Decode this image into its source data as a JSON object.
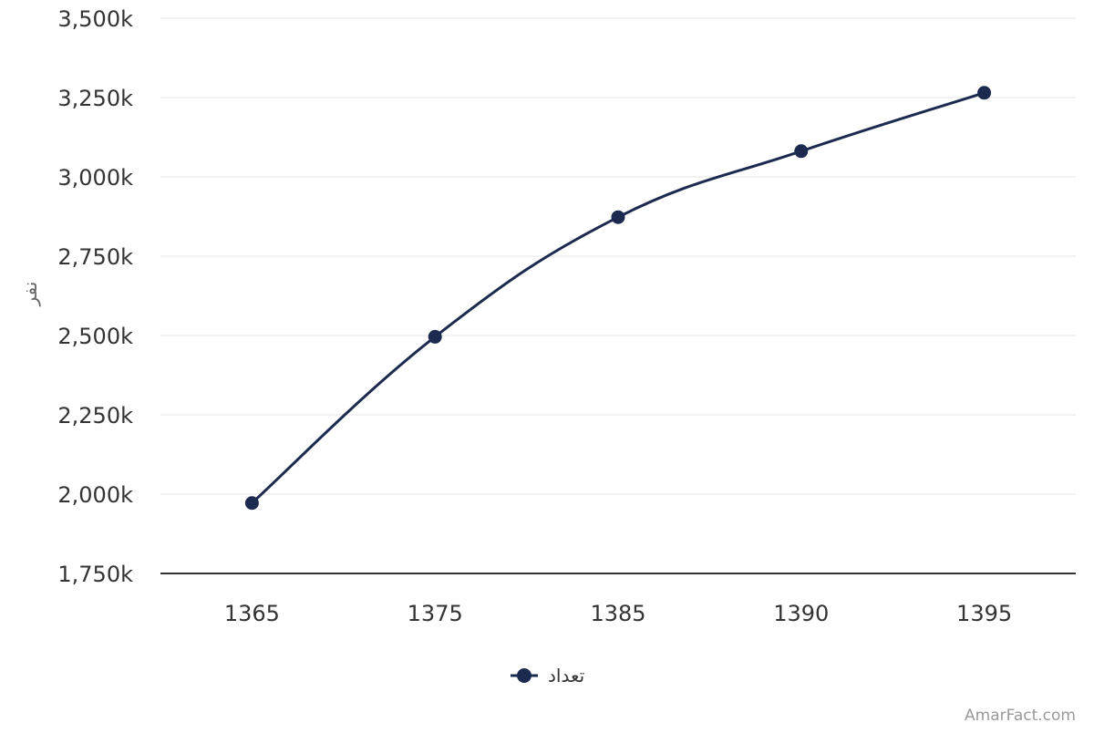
{
  "chart_data": {
    "type": "line",
    "title": "",
    "xlabel": "",
    "ylabel": "نفر",
    "categories": [
      "1365",
      "1375",
      "1385",
      "1390",
      "1395"
    ],
    "series": [
      {
        "name": "تعداد",
        "values": [
          1972,
          2496,
          2873,
          3081,
          3265
        ],
        "color": "#1b2a4e"
      }
    ],
    "ylim": [
      1750,
      3500
    ],
    "yticks": [
      1750,
      2000,
      2250,
      2500,
      2750,
      3000,
      3250,
      3500
    ],
    "ytick_labels": [
      "1,750k",
      "2,000k",
      "2,250k",
      "2,500k",
      "2,750k",
      "3,000k",
      "3,250k",
      "3,500k"
    ],
    "grid": true,
    "legend_position": "bottom-center",
    "colors": {
      "line": "#1b2a4e",
      "grid": "#e6e6e6",
      "axis": "#333333"
    }
  },
  "credit": "AmarFact.com"
}
